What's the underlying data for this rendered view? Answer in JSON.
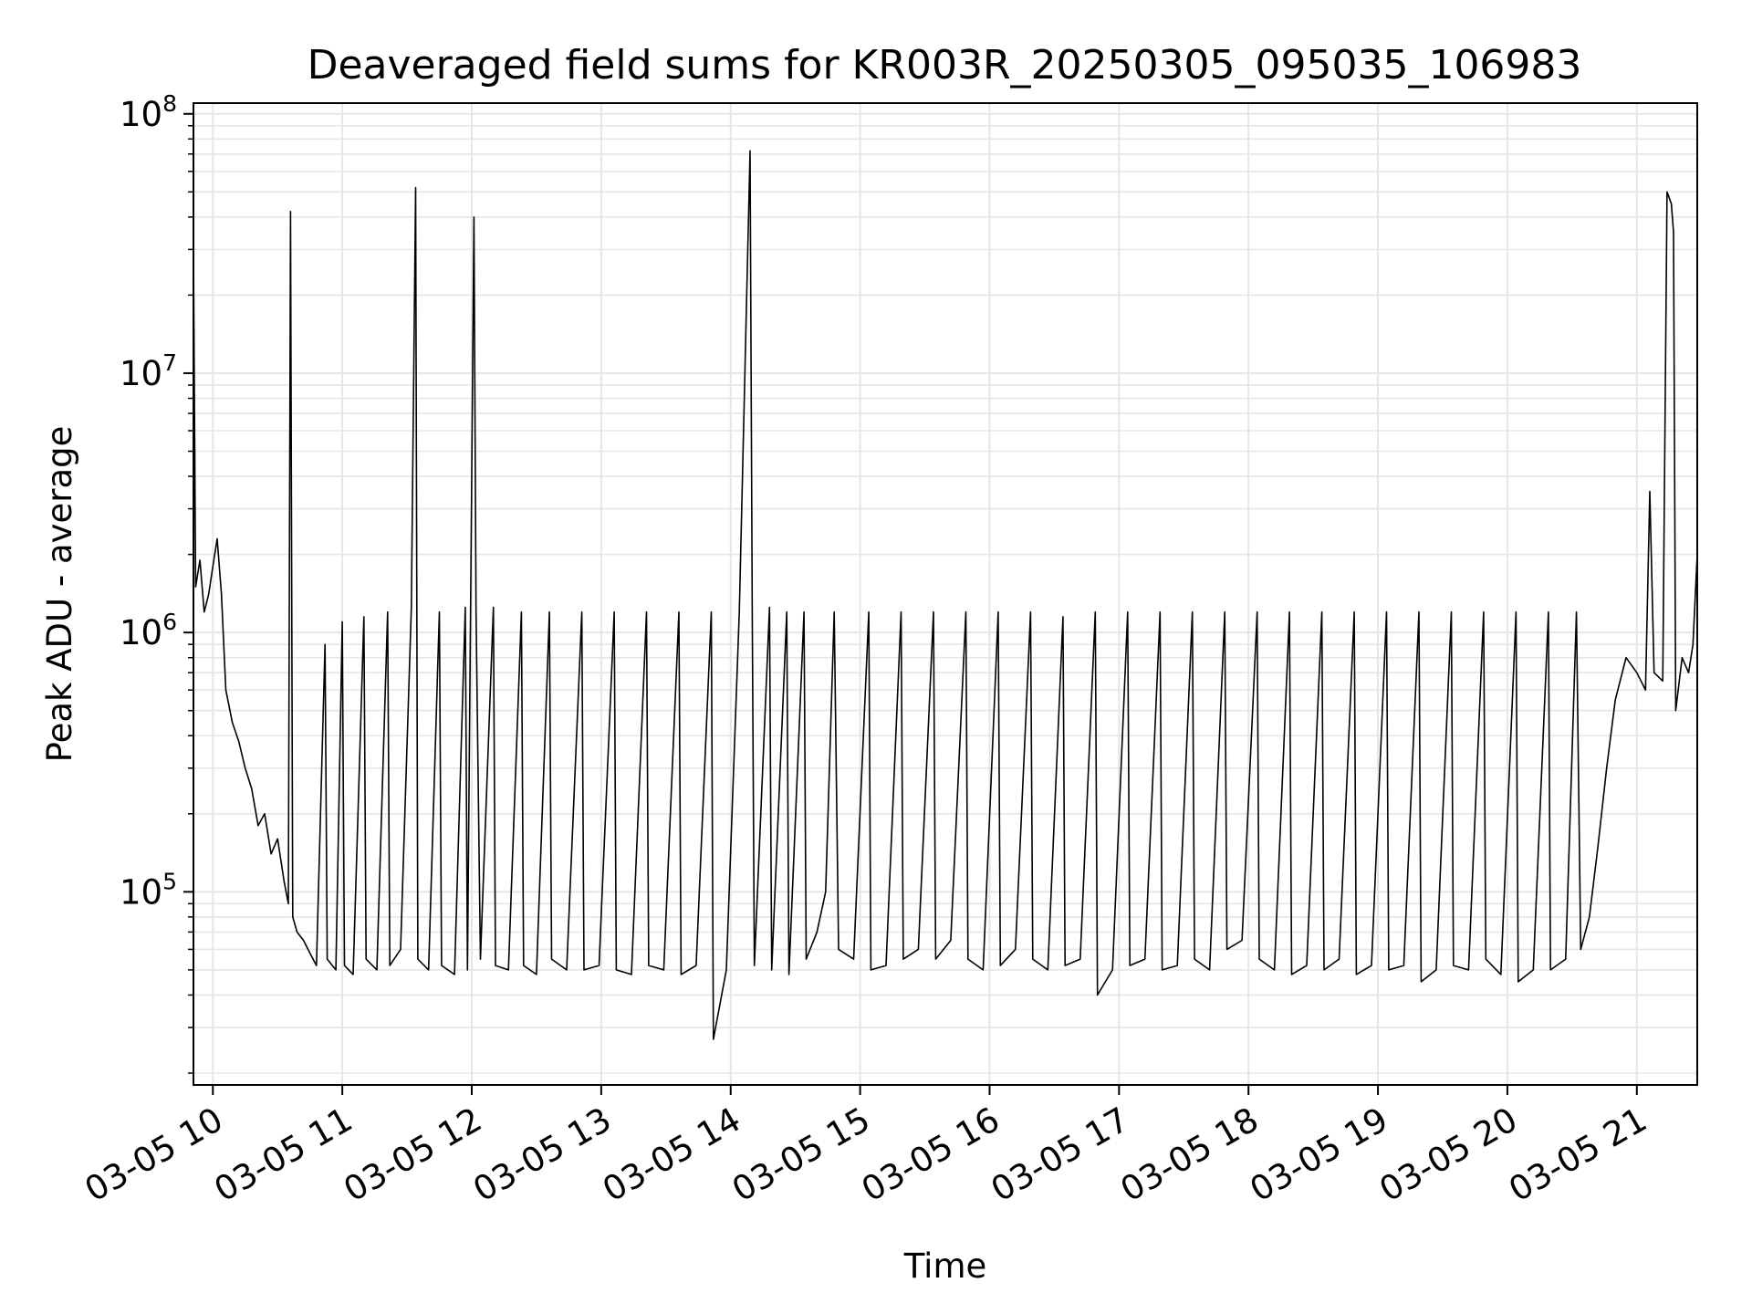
{
  "chart_data": {
    "type": "line",
    "title": "Deaveraged field sums for KR003R_20250305_095035_106983",
    "xlabel": "Time",
    "ylabel": "Peak ADU - average",
    "yscale": "log",
    "ylim": [
      18000,
      110000000
    ],
    "xlim": [
      "2025-03-05 09:51",
      "2025-03-05 21:28"
    ],
    "grid": true,
    "line_color": "#000000",
    "grid_color": "#e6e6e6",
    "x_ticks": [
      {
        "t": "2025-03-05 10:00",
        "label": "03-05 10"
      },
      {
        "t": "2025-03-05 11:00",
        "label": "03-05 11"
      },
      {
        "t": "2025-03-05 12:00",
        "label": "03-05 12"
      },
      {
        "t": "2025-03-05 13:00",
        "label": "03-05 13"
      },
      {
        "t": "2025-03-05 14:00",
        "label": "03-05 14"
      },
      {
        "t": "2025-03-05 15:00",
        "label": "03-05 15"
      },
      {
        "t": "2025-03-05 16:00",
        "label": "03-05 16"
      },
      {
        "t": "2025-03-05 17:00",
        "label": "03-05 17"
      },
      {
        "t": "2025-03-05 18:00",
        "label": "03-05 18"
      },
      {
        "t": "2025-03-05 19:00",
        "label": "03-05 19"
      },
      {
        "t": "2025-03-05 20:00",
        "label": "03-05 20"
      },
      {
        "t": "2025-03-05 21:00",
        "label": "03-05 21"
      }
    ],
    "y_ticks": [
      {
        "value": 100000,
        "base": "10",
        "exp": "5"
      },
      {
        "value": 1000000,
        "base": "10",
        "exp": "6"
      },
      {
        "value": 10000000,
        "base": "10",
        "exp": "7"
      },
      {
        "value": 100000000,
        "base": "10",
        "exp": "8"
      }
    ],
    "series": [
      {
        "values": [
          [
            "2025-03-05 09:51",
            30000000
          ],
          [
            "2025-03-05 09:52",
            1500000
          ],
          [
            "2025-03-05 09:54",
            1900000
          ],
          [
            "2025-03-05 09:56",
            1200000
          ],
          [
            "2025-03-05 09:58",
            1400000
          ],
          [
            "2025-03-05 10:00",
            1800000
          ],
          [
            "2025-03-05 10:02",
            2300000
          ],
          [
            "2025-03-05 10:04",
            1400000
          ],
          [
            "2025-03-05 10:06",
            600000
          ],
          [
            "2025-03-05 10:09",
            450000
          ],
          [
            "2025-03-05 10:12",
            380000
          ],
          [
            "2025-03-05 10:15",
            300000
          ],
          [
            "2025-03-05 10:18",
            250000
          ],
          [
            "2025-03-05 10:21",
            180000
          ],
          [
            "2025-03-05 10:24",
            200000
          ],
          [
            "2025-03-05 10:27",
            140000
          ],
          [
            "2025-03-05 10:30",
            160000
          ],
          [
            "2025-03-05 10:33",
            110000
          ],
          [
            "2025-03-05 10:35",
            90000
          ],
          [
            "2025-03-05 10:36",
            42000000
          ],
          [
            "2025-03-05 10:37",
            80000
          ],
          [
            "2025-03-05 10:39",
            70000
          ],
          [
            "2025-03-05 10:42",
            65000
          ],
          [
            "2025-03-05 10:45",
            58000
          ],
          [
            "2025-03-05 10:48",
            52000
          ],
          [
            "2025-03-05 10:52",
            900000
          ],
          [
            "2025-03-05 10:53",
            55000
          ],
          [
            "2025-03-05 10:57",
            50000
          ],
          [
            "2025-03-05 11:00",
            1100000
          ],
          [
            "2025-03-05 11:01",
            52000
          ],
          [
            "2025-03-05 11:05",
            48000
          ],
          [
            "2025-03-05 11:10",
            1150000
          ],
          [
            "2025-03-05 11:11",
            55000
          ],
          [
            "2025-03-05 11:16",
            50000
          ],
          [
            "2025-03-05 11:21",
            1200000
          ],
          [
            "2025-03-05 11:22",
            52000
          ],
          [
            "2025-03-05 11:27",
            60000
          ],
          [
            "2025-03-05 11:32",
            1250000
          ],
          [
            "2025-03-05 11:34",
            52000000
          ],
          [
            "2025-03-05 11:35",
            55000
          ],
          [
            "2025-03-05 11:40",
            50000
          ],
          [
            "2025-03-05 11:45",
            1200000
          ],
          [
            "2025-03-05 11:46",
            52000
          ],
          [
            "2025-03-05 11:52",
            48000
          ],
          [
            "2025-03-05 11:57",
            1250000
          ],
          [
            "2025-03-05 11:58",
            50000
          ],
          [
            "2025-03-05 12:01",
            40000000
          ],
          [
            "2025-03-05 12:02",
            1200000
          ],
          [
            "2025-03-05 12:04",
            55000
          ],
          [
            "2025-03-05 12:10",
            1250000
          ],
          [
            "2025-03-05 12:11",
            52000
          ],
          [
            "2025-03-05 12:17",
            50000
          ],
          [
            "2025-03-05 12:23",
            1200000
          ],
          [
            "2025-03-05 12:24",
            52000
          ],
          [
            "2025-03-05 12:30",
            48000
          ],
          [
            "2025-03-05 12:36",
            1200000
          ],
          [
            "2025-03-05 12:37",
            55000
          ],
          [
            "2025-03-05 12:44",
            50000
          ],
          [
            "2025-03-05 12:51",
            1200000
          ],
          [
            "2025-03-05 12:52",
            50000
          ],
          [
            "2025-03-05 12:59",
            52000
          ],
          [
            "2025-03-05 13:06",
            1200000
          ],
          [
            "2025-03-05 13:07",
            50000
          ],
          [
            "2025-03-05 13:14",
            48000
          ],
          [
            "2025-03-05 13:21",
            1200000
          ],
          [
            "2025-03-05 13:22",
            52000
          ],
          [
            "2025-03-05 13:29",
            50000
          ],
          [
            "2025-03-05 13:36",
            1200000
          ],
          [
            "2025-03-05 13:37",
            48000
          ],
          [
            "2025-03-05 13:44",
            52000
          ],
          [
            "2025-03-05 13:51",
            1200000
          ],
          [
            "2025-03-05 13:52",
            27000
          ],
          [
            "2025-03-05 13:58",
            50000
          ],
          [
            "2025-03-05 14:04",
            1200000
          ],
          [
            "2025-03-05 14:09",
            72000000
          ],
          [
            "2025-03-05 14:10",
            1150000
          ],
          [
            "2025-03-05 14:11",
            52000
          ],
          [
            "2025-03-05 14:18",
            1250000
          ],
          [
            "2025-03-05 14:19",
            50000
          ],
          [
            "2025-03-05 14:26",
            1200000
          ],
          [
            "2025-03-05 14:27",
            48000
          ],
          [
            "2025-03-05 14:34",
            1200000
          ],
          [
            "2025-03-05 14:35",
            55000
          ],
          [
            "2025-03-05 14:40",
            70000
          ],
          [
            "2025-03-05 14:44",
            100000
          ],
          [
            "2025-03-05 14:48",
            1200000
          ],
          [
            "2025-03-05 14:50",
            60000
          ],
          [
            "2025-03-05 14:57",
            55000
          ],
          [
            "2025-03-05 15:04",
            1200000
          ],
          [
            "2025-03-05 15:05",
            50000
          ],
          [
            "2025-03-05 15:12",
            52000
          ],
          [
            "2025-03-05 15:19",
            1200000
          ],
          [
            "2025-03-05 15:20",
            55000
          ],
          [
            "2025-03-05 15:27",
            60000
          ],
          [
            "2025-03-05 15:34",
            1200000
          ],
          [
            "2025-03-05 15:35",
            55000
          ],
          [
            "2025-03-05 15:42",
            65000
          ],
          [
            "2025-03-05 15:49",
            1200000
          ],
          [
            "2025-03-05 15:50",
            55000
          ],
          [
            "2025-03-05 15:57",
            50000
          ],
          [
            "2025-03-05 16:04",
            1200000
          ],
          [
            "2025-03-05 16:05",
            52000
          ],
          [
            "2025-03-05 16:12",
            60000
          ],
          [
            "2025-03-05 16:19",
            1200000
          ],
          [
            "2025-03-05 16:20",
            55000
          ],
          [
            "2025-03-05 16:27",
            50000
          ],
          [
            "2025-03-05 16:34",
            1150000
          ],
          [
            "2025-03-05 16:35",
            52000
          ],
          [
            "2025-03-05 16:42",
            55000
          ],
          [
            "2025-03-05 16:49",
            1200000
          ],
          [
            "2025-03-05 16:50",
            40000
          ],
          [
            "2025-03-05 16:57",
            50000
          ],
          [
            "2025-03-05 17:04",
            1200000
          ],
          [
            "2025-03-05 17:05",
            52000
          ],
          [
            "2025-03-05 17:12",
            55000
          ],
          [
            "2025-03-05 17:19",
            1200000
          ],
          [
            "2025-03-05 17:20",
            50000
          ],
          [
            "2025-03-05 17:27",
            52000
          ],
          [
            "2025-03-05 17:34",
            1200000
          ],
          [
            "2025-03-05 17:35",
            55000
          ],
          [
            "2025-03-05 17:42",
            50000
          ],
          [
            "2025-03-05 17:49",
            1200000
          ],
          [
            "2025-03-05 17:50",
            60000
          ],
          [
            "2025-03-05 17:57",
            65000
          ],
          [
            "2025-03-05 18:04",
            1200000
          ],
          [
            "2025-03-05 18:05",
            55000
          ],
          [
            "2025-03-05 18:12",
            50000
          ],
          [
            "2025-03-05 18:19",
            1200000
          ],
          [
            "2025-03-05 18:20",
            48000
          ],
          [
            "2025-03-05 18:27",
            52000
          ],
          [
            "2025-03-05 18:34",
            1200000
          ],
          [
            "2025-03-05 18:35",
            50000
          ],
          [
            "2025-03-05 18:42",
            55000
          ],
          [
            "2025-03-05 18:49",
            1200000
          ],
          [
            "2025-03-05 18:50",
            48000
          ],
          [
            "2025-03-05 18:57",
            52000
          ],
          [
            "2025-03-05 19:04",
            1200000
          ],
          [
            "2025-03-05 19:05",
            50000
          ],
          [
            "2025-03-05 19:12",
            52000
          ],
          [
            "2025-03-05 19:19",
            1200000
          ],
          [
            "2025-03-05 19:20",
            45000
          ],
          [
            "2025-03-05 19:27",
            50000
          ],
          [
            "2025-03-05 19:34",
            1200000
          ],
          [
            "2025-03-05 19:35",
            52000
          ],
          [
            "2025-03-05 19:42",
            50000
          ],
          [
            "2025-03-05 19:49",
            1200000
          ],
          [
            "2025-03-05 19:50",
            55000
          ],
          [
            "2025-03-05 19:57",
            48000
          ],
          [
            "2025-03-05 20:04",
            1200000
          ],
          [
            "2025-03-05 20:05",
            45000
          ],
          [
            "2025-03-05 20:12",
            50000
          ],
          [
            "2025-03-05 20:19",
            1200000
          ],
          [
            "2025-03-05 20:20",
            50000
          ],
          [
            "2025-03-05 20:27",
            55000
          ],
          [
            "2025-03-05 20:32",
            1200000
          ],
          [
            "2025-03-05 20:34",
            60000
          ],
          [
            "2025-03-05 20:38",
            80000
          ],
          [
            "2025-03-05 20:42",
            150000
          ],
          [
            "2025-03-05 20:46",
            300000
          ],
          [
            "2025-03-05 20:50",
            550000
          ],
          [
            "2025-03-05 20:55",
            800000
          ],
          [
            "2025-03-05 21:00",
            700000
          ],
          [
            "2025-03-05 21:04",
            600000
          ],
          [
            "2025-03-05 21:06",
            3500000
          ],
          [
            "2025-03-05 21:08",
            700000
          ],
          [
            "2025-03-05 21:12",
            650000
          ],
          [
            "2025-03-05 21:14",
            50000000
          ],
          [
            "2025-03-05 21:16",
            45000000
          ],
          [
            "2025-03-05 21:17",
            35000000
          ],
          [
            "2025-03-05 21:18",
            500000
          ],
          [
            "2025-03-05 21:21",
            800000
          ],
          [
            "2025-03-05 21:24",
            700000
          ],
          [
            "2025-03-05 21:26",
            900000
          ],
          [
            "2025-03-05 21:28",
            2000000
          ]
        ]
      }
    ]
  }
}
